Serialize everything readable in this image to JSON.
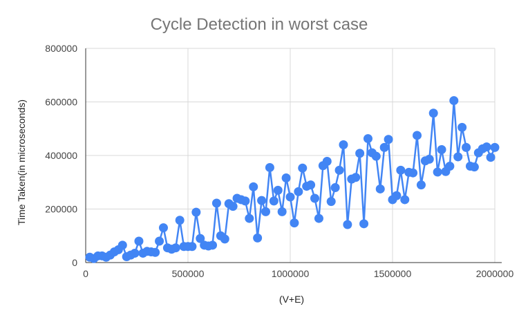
{
  "chart_data": {
    "type": "line",
    "title": "Cycle Detection in worst case",
    "xlabel": "(V+E)",
    "ylabel": "Time Taken(in microseconds)",
    "xlim": [
      0,
      2000000
    ],
    "ylim": [
      0,
      800000
    ],
    "x_ticks": [
      "0",
      "500000",
      "1000000",
      "1500000",
      "2000000"
    ],
    "y_ticks": [
      "0",
      "200000",
      "400000",
      "600000",
      "800000"
    ],
    "grid": true,
    "legend": "none",
    "series_color": "#4285f4",
    "x": [
      20000,
      40000,
      60000,
      80000,
      100000,
      120000,
      140000,
      160000,
      180000,
      200000,
      220000,
      240000,
      260000,
      280000,
      300000,
      320000,
      340000,
      360000,
      380000,
      400000,
      420000,
      440000,
      460000,
      480000,
      500000,
      520000,
      540000,
      560000,
      580000,
      600000,
      620000,
      640000,
      660000,
      680000,
      700000,
      720000,
      740000,
      760000,
      780000,
      800000,
      820000,
      840000,
      860000,
      880000,
      900000,
      920000,
      940000,
      960000,
      980000,
      1000000,
      1020000,
      1040000,
      1060000,
      1080000,
      1100000,
      1120000,
      1140000,
      1160000,
      1180000,
      1200000,
      1220000,
      1240000,
      1260000,
      1280000,
      1300000,
      1320000,
      1340000,
      1360000,
      1380000,
      1400000,
      1420000,
      1440000,
      1460000,
      1480000,
      1500000,
      1520000,
      1540000,
      1560000,
      1580000,
      1600000,
      1620000,
      1640000,
      1660000,
      1680000,
      1700000,
      1720000,
      1740000,
      1760000,
      1780000,
      1800000,
      1820000,
      1840000,
      1860000,
      1880000,
      1900000,
      1920000,
      1940000,
      1960000,
      1980000,
      2000000
    ],
    "values": [
      20000,
      15000,
      25000,
      25000,
      20000,
      28000,
      40000,
      48000,
      65000,
      22000,
      28000,
      35000,
      80000,
      35000,
      42000,
      40000,
      38000,
      80000,
      130000,
      55000,
      50000,
      55000,
      158000,
      60000,
      60000,
      60000,
      188000,
      90000,
      65000,
      62000,
      65000,
      222000,
      100000,
      88000,
      220000,
      210000,
      240000,
      235000,
      230000,
      165000,
      283000,
      92000,
      232000,
      190000,
      355000,
      230000,
      270000,
      190000,
      316000,
      245000,
      148000,
      265000,
      353000,
      285000,
      290000,
      240000,
      165000,
      362000,
      378000,
      228000,
      280000,
      345000,
      440000,
      142000,
      312000,
      318000,
      408000,
      145000,
      463000,
      410000,
      397000,
      275000,
      430000,
      460000,
      235000,
      250000,
      345000,
      235000,
      337000,
      335000,
      475000,
      290000,
      380000,
      386000,
      558000,
      338000,
      422000,
      340000,
      360000,
      605000,
      395000,
      505000,
      430000,
      360000,
      357000,
      410000,
      425000,
      432000,
      393000,
      430000
    ]
  }
}
